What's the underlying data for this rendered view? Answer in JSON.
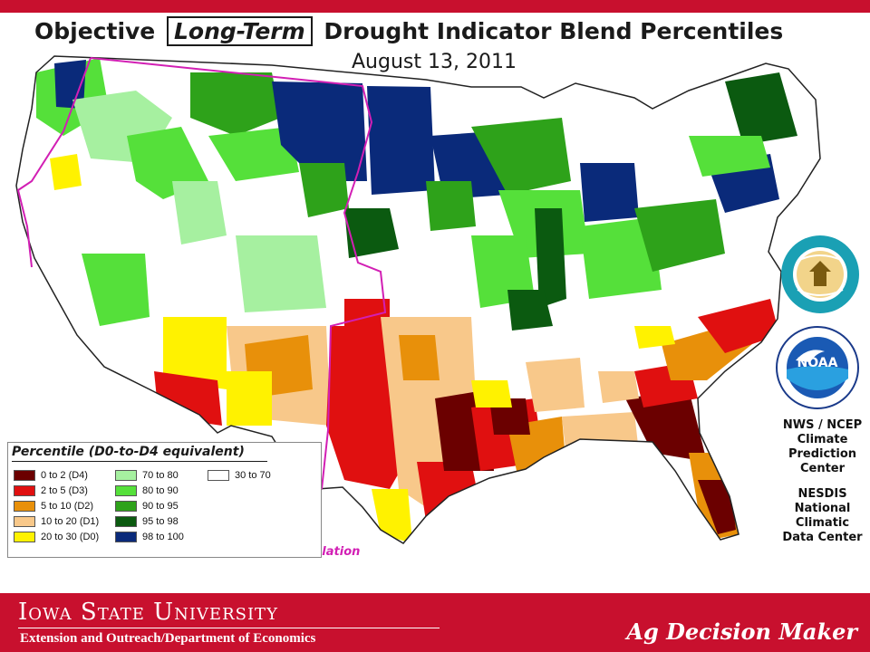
{
  "title": {
    "part1": "Objective",
    "highlight": "Long-Term",
    "part2": "Drought Indicator Blend Percentiles"
  },
  "date": "August 13, 2011",
  "legend": {
    "title": "Percentile  (D0-to-D4 equivalent)",
    "items": [
      {
        "label": "0 to 2  (D4)",
        "color": "#6b0000"
      },
      {
        "label": "2 to 5  (D3)",
        "color": "#e01010"
      },
      {
        "label": "5 to 10  (D2)",
        "color": "#e8900a"
      },
      {
        "label": "10 to 20  (D1)",
        "color": "#f8c88a"
      },
      {
        "label": "20 to 30  (D0)",
        "color": "#fff200"
      },
      {
        "label": "70 to 80",
        "color": "#a6f0a0"
      },
      {
        "label": "80 to 90",
        "color": "#55e03a"
      },
      {
        "label": "90 to 95",
        "color": "#2ea21a"
      },
      {
        "label": "95 to 98",
        "color": "#0b5a10"
      },
      {
        "label": "98 to 100",
        "color": "#0a2a7a"
      },
      {
        "label": "30 to 70",
        "color": "#ffffff"
      }
    ]
  },
  "formulation_label": "Western Formulation",
  "agency": {
    "cpc_lines": [
      "NWS / NCEP",
      "Climate",
      "Prediction",
      "Center"
    ],
    "ncdc_lines": [
      "NESDIS",
      "National",
      "Climatic",
      "Data Center"
    ],
    "noaa_text": "NOAA",
    "seal_icon": "department-of-commerce-seal-icon",
    "noaa_icon": "noaa-logo-icon"
  },
  "footer": {
    "university": "Iowa State University",
    "extension": "Extension and Outreach/Department  of Economics",
    "brand": "Ag Decision Maker",
    "color": "#c8102e"
  }
}
